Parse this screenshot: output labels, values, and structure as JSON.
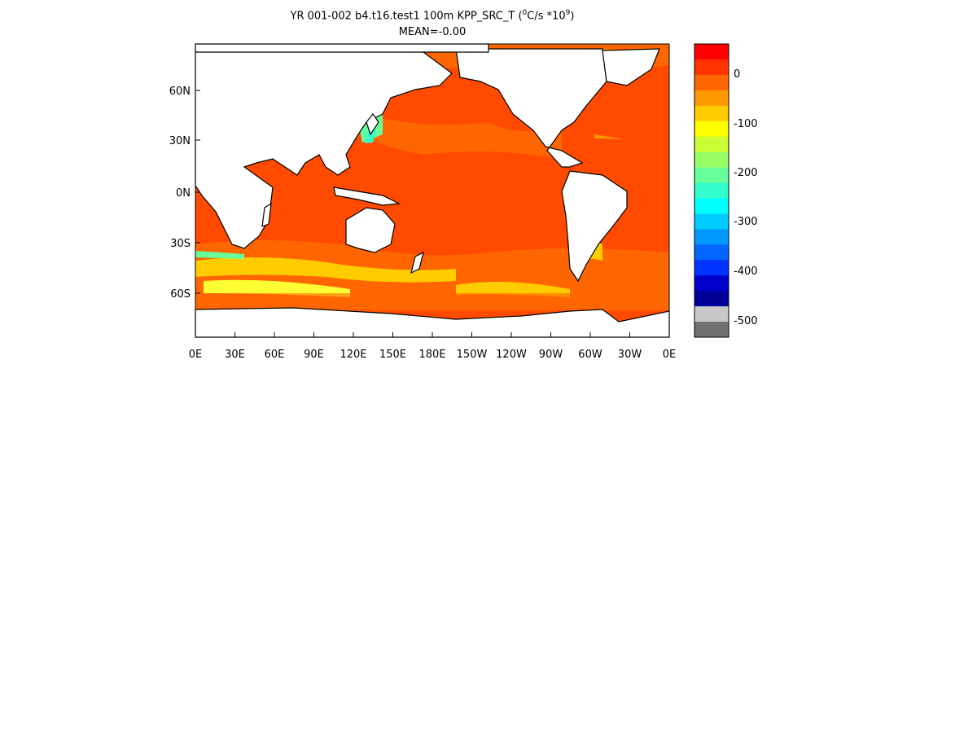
{
  "title": {
    "main": "YR 001-002 b4.t16.test1 100m KPP_SRC_T (",
    "deg_sup": "0",
    "units_mid": "C/s *10",
    "pow_sup": "9",
    "close": ")",
    "mean": "MEAN=-0.00"
  },
  "chart_data": {
    "type": "heatmap",
    "title": "YR 001-002 b4.t16.test1 100m KPP_SRC_T (0C/s *10^9)",
    "subtitle": "MEAN=-0.00",
    "projection": "equirectangular global ocean",
    "lat_ticks": [
      "60N",
      "30N",
      "0N",
      "30S",
      "60S"
    ],
    "lon_ticks": [
      "0E",
      "30E",
      "60E",
      "90E",
      "120E",
      "150E",
      "180E",
      "150W",
      "120W",
      "90W",
      "60W",
      "30W",
      "0E"
    ],
    "colorbar": {
      "labels": [
        "0",
        "-100",
        "-200",
        "-300",
        "-400",
        "-500"
      ],
      "level_colors": [
        "#ff0000",
        "#ff3300",
        "#ff6600",
        "#ff9900",
        "#ffcc00",
        "#ffff00",
        "#ccff33",
        "#99ff66",
        "#66ff99",
        "#33ffcc",
        "#00ffff",
        "#00ccff",
        "#0099ff",
        "#0066ff",
        "#0033ff",
        "#0000cc",
        "#000099",
        "#c8c8c8",
        "#707070"
      ]
    },
    "dominant_value_color": "#ff3300"
  }
}
